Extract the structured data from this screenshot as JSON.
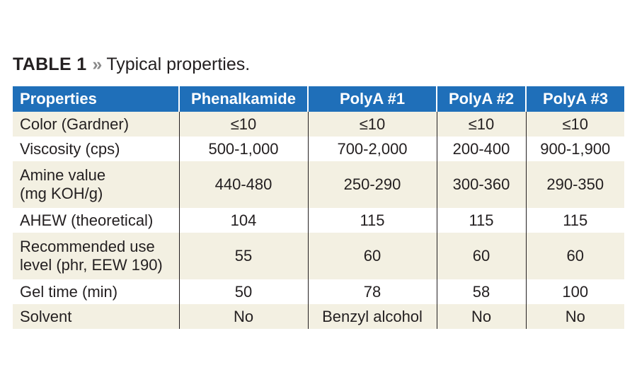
{
  "caption": {
    "label": "TABLE 1",
    "separator": "»",
    "description": "Typical properties."
  },
  "table": {
    "headers": [
      "Properties",
      "Phenalkamide",
      "PolyA #1",
      "PolyA #2",
      "PolyA #3"
    ],
    "rows": [
      {
        "property_lines": [
          "Color (Gardner)"
        ],
        "values": [
          "≤10",
          "≤10",
          "≤10",
          "≤10"
        ]
      },
      {
        "property_lines": [
          "Viscosity (cps)"
        ],
        "values": [
          "500-1,000",
          "700-2,000",
          "200-400",
          "900-1,900"
        ]
      },
      {
        "property_lines": [
          "Amine value",
          "(mg KOH/g)"
        ],
        "values": [
          "440-480",
          "250-290",
          "300-360",
          "290-350"
        ]
      },
      {
        "property_lines": [
          "AHEW (theoretical)"
        ],
        "values": [
          "104",
          "115",
          "115",
          "115"
        ]
      },
      {
        "property_lines": [
          "Recommended use",
          "level (phr, EEW 190)"
        ],
        "values": [
          "55",
          "60",
          "60",
          "60"
        ]
      },
      {
        "property_lines": [
          "Gel time (min)"
        ],
        "values": [
          "50",
          "78",
          "58",
          "100"
        ]
      },
      {
        "property_lines": [
          "Solvent"
        ],
        "values": [
          "No",
          "Benzyl alcohol",
          "No",
          "No"
        ]
      }
    ]
  },
  "colors": {
    "header_bg": "#1f6fb9",
    "header_text": "#ffffff",
    "shaded_row_bg": "#f3f0e2",
    "text": "#231f20"
  }
}
